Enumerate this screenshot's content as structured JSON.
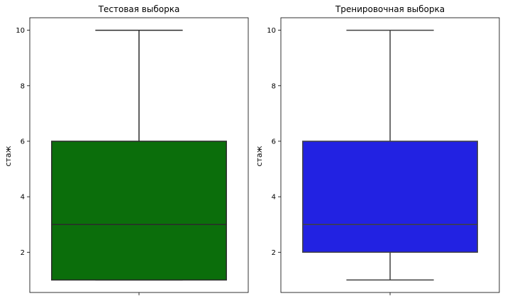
{
  "chart_data": [
    {
      "type": "box",
      "title": "Тестовая выборка",
      "ylabel": "стаж",
      "xlabel": "",
      "ylim": [
        0.55,
        10.45
      ],
      "yticks": [
        2,
        4,
        6,
        8,
        10
      ],
      "grid": false,
      "box": {
        "whisker_low": 1,
        "q1": 1,
        "median": 3,
        "q3": 6,
        "whisker_high": 10
      },
      "fill_color": "#0b6e0b",
      "line_color": "#2b2b2b"
    },
    {
      "type": "box",
      "title": "Тренировочная выборка",
      "ylabel": "стаж",
      "xlabel": "",
      "ylim": [
        0.55,
        10.45
      ],
      "yticks": [
        2,
        4,
        6,
        8,
        10
      ],
      "grid": false,
      "box": {
        "whisker_low": 1,
        "q1": 2,
        "median": 3,
        "q3": 6,
        "whisker_high": 10
      },
      "fill_color": "#2222e2",
      "line_color": "#404040"
    }
  ]
}
